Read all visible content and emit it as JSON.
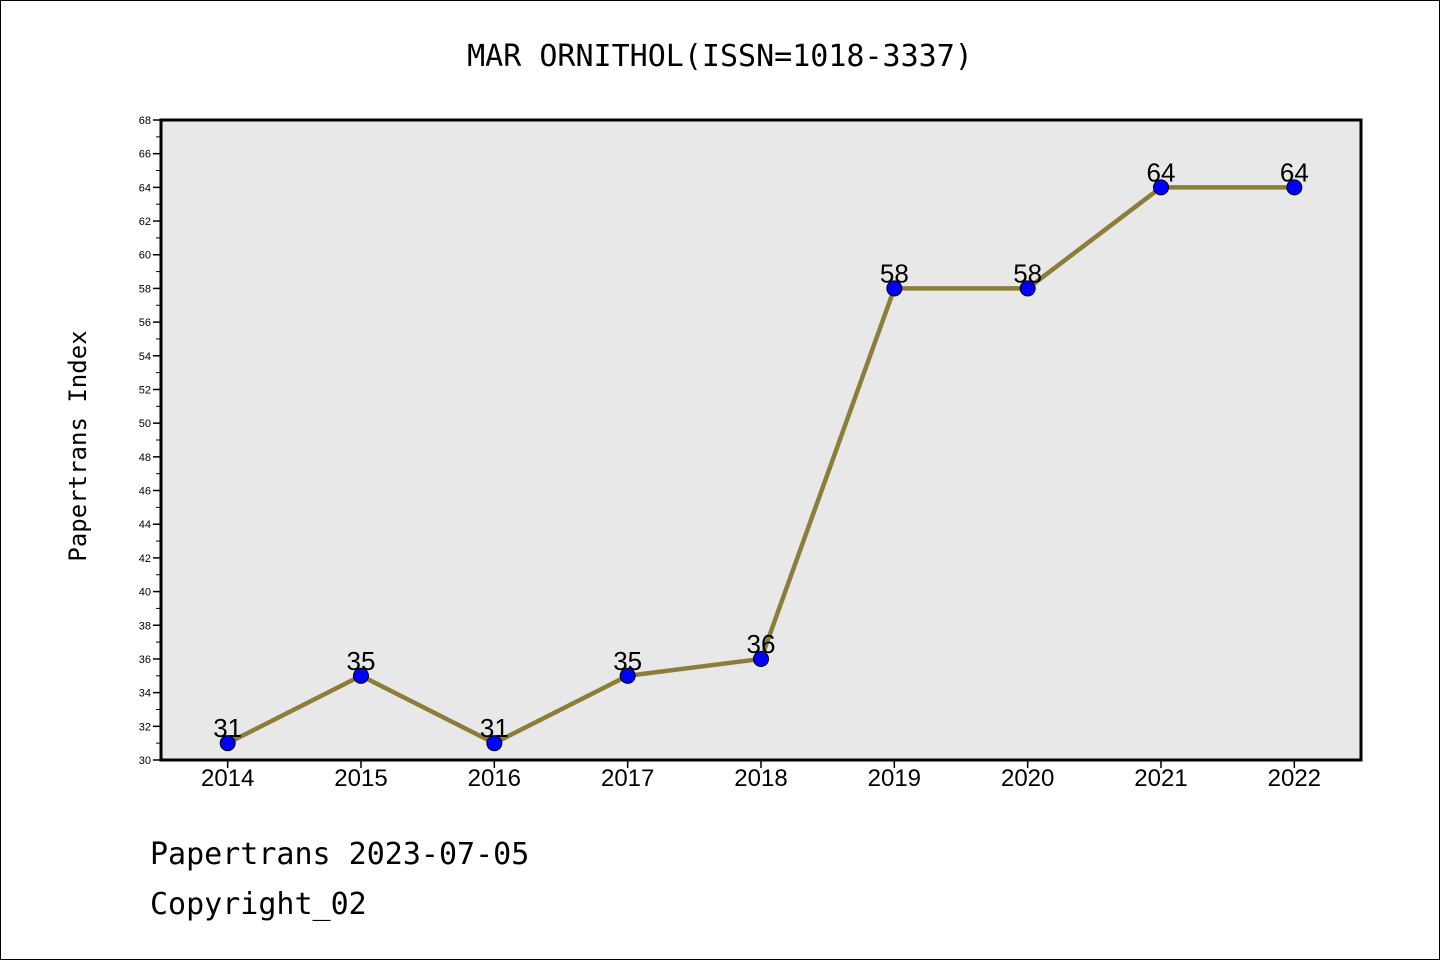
{
  "chart_data": {
    "type": "line",
    "title": "MAR ORNITHOL(ISSN=1018-3337)",
    "xlabel": "",
    "ylabel": "Papertrans Index",
    "categories": [
      "2014",
      "2015",
      "2016",
      "2017",
      "2018",
      "2019",
      "2020",
      "2021",
      "2022"
    ],
    "series": [
      {
        "values": [
          31,
          35,
          31,
          35,
          36,
          58,
          58,
          64,
          64
        ]
      }
    ],
    "ylim": [
      30,
      68
    ],
    "y_ticks": [
      30,
      32,
      34,
      36,
      38,
      40,
      42,
      44,
      46,
      48,
      50,
      52,
      54,
      56,
      58,
      60,
      62,
      64,
      66,
      68
    ],
    "grid": false,
    "line_color": "#8b7d3a",
    "marker_color": "#0000ff",
    "plot_background": "#e8e8e8"
  },
  "footer": {
    "date_line": "Papertrans 2023-07-05",
    "copyright": "Copyright_02"
  }
}
